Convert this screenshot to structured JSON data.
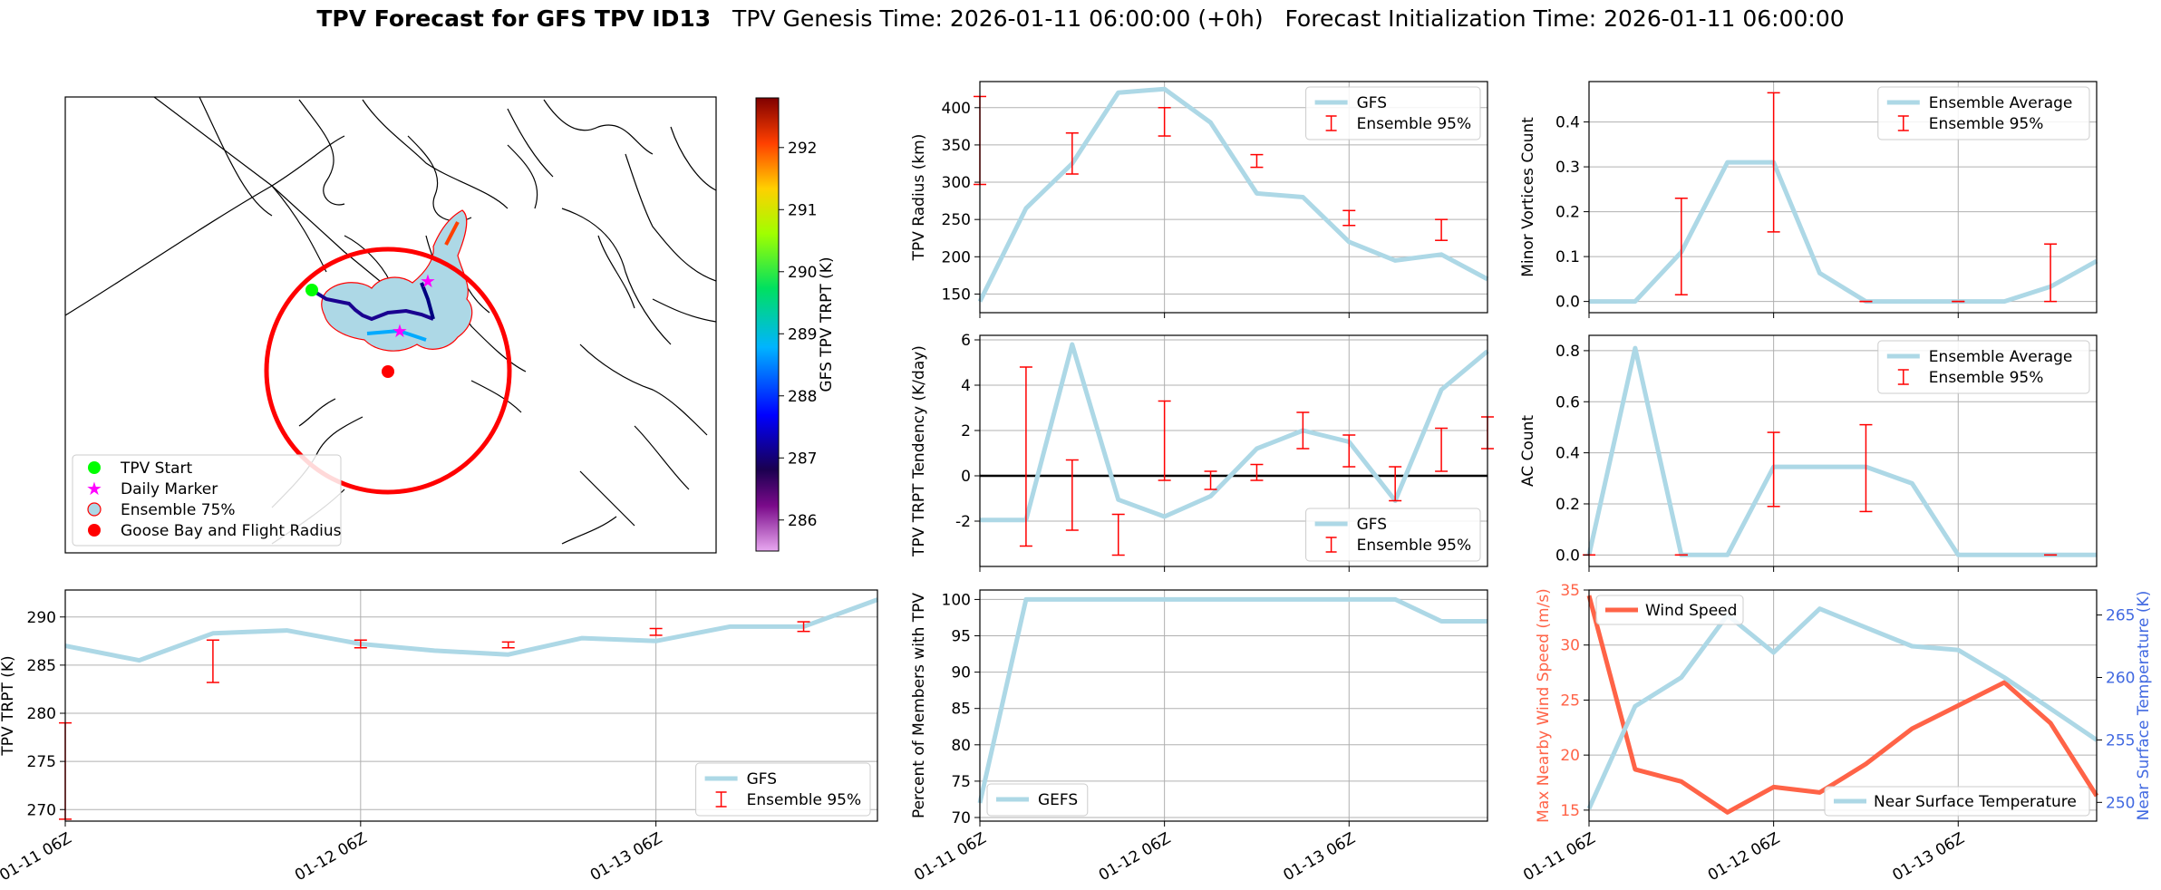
{
  "title": {
    "bold": "TPV Forecast for GFS TPV ID13",
    "genesis": "TPV Genesis Time: 2026-01-11 06:00:00 (+0h)",
    "init": "Forecast Initialization Time: 2026-01-11 06:00:00"
  },
  "colors": {
    "series": "#add8e6",
    "error": "#ff0000",
    "wind": "#ff6347",
    "temp_axis": "#4169e1",
    "grid": "#b0b0b0",
    "coast": "#000000",
    "fill": "#add8e6"
  },
  "map": {
    "legend": [
      "TPV Start",
      "Daily Marker",
      "Ensemble 75%",
      "Goose Bay and Flight Radius"
    ],
    "colorbar": {
      "label": "GFS TPV TRPT (K)",
      "ticks": [
        286,
        287,
        288,
        289,
        290,
        291,
        292
      ],
      "range": [
        285.5,
        292.8
      ]
    }
  },
  "chart_data": [
    {
      "id": "radius",
      "type": "line",
      "title": "",
      "xlabel": "",
      "ylabel": "TPV Radius (km)",
      "x": [
        0,
        0.25,
        0.5,
        0.75,
        1.0,
        1.25,
        1.5,
        1.75,
        2.0,
        2.25,
        2.5,
        2.75
      ],
      "xlim": [
        0,
        2.75
      ],
      "ylim": [
        125,
        435
      ],
      "yticks": [
        150,
        200,
        250,
        300,
        350,
        400
      ],
      "xticks": [
        0,
        1,
        2
      ],
      "xticklabels": [
        "01-11 06Z",
        "01-12 06Z",
        "01-13 06Z"
      ],
      "show_xticklabels": false,
      "series": [
        {
          "name": "GFS",
          "values": [
            140,
            265,
            325,
            420,
            425,
            380,
            285,
            280,
            220,
            195,
            203,
            170
          ]
        }
      ],
      "errorbars": {
        "name": "Ensemble 95%",
        "ranges": [
          [
            297,
            415
          ],
          null,
          [
            311,
            366
          ],
          null,
          [
            362,
            400
          ],
          null,
          [
            320,
            337
          ],
          null,
          [
            242,
            262
          ],
          null,
          [
            222,
            250
          ],
          null
        ]
      },
      "legend": [
        "GFS",
        "Ensemble 95%"
      ],
      "legend_loc": "upper-right"
    },
    {
      "id": "minor",
      "type": "line",
      "title": "",
      "xlabel": "",
      "ylabel": "Minor Vortices Count",
      "x": [
        0,
        0.25,
        0.5,
        0.75,
        1.0,
        1.25,
        1.5,
        1.75,
        2.0,
        2.25,
        2.5,
        2.75
      ],
      "xlim": [
        0,
        2.75
      ],
      "ylim": [
        -0.025,
        0.49
      ],
      "yticks": [
        0.0,
        0.1,
        0.2,
        0.3,
        0.4
      ],
      "xticks": [
        0,
        1,
        2
      ],
      "xticklabels": [
        "01-11 06Z",
        "01-12 06Z",
        "01-13 06Z"
      ],
      "show_xticklabels": false,
      "series": [
        {
          "name": "Ensemble Average",
          "values": [
            0,
            0,
            0.11,
            0.31,
            0.31,
            0.063,
            0,
            0,
            0,
            0,
            0.033,
            0.09
          ]
        }
      ],
      "errorbars": {
        "name": "Ensemble 95%",
        "ranges": [
          null,
          null,
          [
            0.015,
            0.23
          ],
          null,
          [
            0.155,
            0.465
          ],
          null,
          [
            0,
            0
          ],
          null,
          [
            0,
            0
          ],
          null,
          [
            0,
            0.128
          ],
          null
        ]
      },
      "legend": [
        "Ensemble Average",
        "Ensemble 95%"
      ],
      "legend_loc": "upper-right"
    },
    {
      "id": "tendency",
      "type": "line",
      "title": "",
      "xlabel": "",
      "ylabel": "TPV TRPT Tendency (K/day)",
      "x": [
        0,
        0.25,
        0.5,
        0.75,
        1.0,
        1.25,
        1.5,
        1.75,
        2.0,
        2.25,
        2.5,
        2.75
      ],
      "xlim": [
        0,
        2.75
      ],
      "ylim": [
        -4.0,
        6.2
      ],
      "yticks": [
        -2,
        0,
        2,
        4,
        6
      ],
      "xticks": [
        0,
        1,
        2
      ],
      "xticklabels": [
        "01-11 06Z",
        "01-12 06Z",
        "01-13 06Z"
      ],
      "show_xticklabels": false,
      "zero_line": true,
      "series": [
        {
          "name": "GFS",
          "values": [
            -1.95,
            -1.95,
            5.8,
            -1.05,
            -1.8,
            -0.9,
            1.2,
            2.0,
            1.5,
            -1.1,
            3.8,
            5.5
          ]
        }
      ],
      "errorbars": {
        "name": "Ensemble 95%",
        "ranges": [
          null,
          null,
          null,
          null,
          null,
          null,
          null,
          null,
          null,
          null,
          null,
          null
        ],
        "xs": [
          0.25,
          0.5,
          0.75,
          1.0,
          1.25,
          1.5,
          1.75,
          2.0,
          2.25,
          2.5,
          2.75
        ],
        "rs": [
          [
            -3.1,
            4.8
          ],
          [
            -2.4,
            0.7
          ],
          [
            -3.5,
            -1.7
          ],
          [
            -0.2,
            3.3
          ],
          [
            -0.6,
            0.2
          ],
          [
            -0.2,
            0.5
          ],
          [
            1.2,
            2.8
          ],
          [
            0.4,
            1.8
          ],
          [
            -1.1,
            0.4
          ],
          [
            0.2,
            2.1
          ],
          [
            1.2,
            2.6
          ]
        ]
      },
      "legend": [
        "GFS",
        "Ensemble 95%"
      ],
      "legend_loc": "lower-right"
    },
    {
      "id": "ac",
      "type": "line",
      "title": "",
      "xlabel": "",
      "ylabel": "AC Count",
      "x": [
        0,
        0.25,
        0.5,
        0.75,
        1.0,
        1.25,
        1.5,
        1.75,
        2.0,
        2.25,
        2.5,
        2.75
      ],
      "xlim": [
        0,
        2.75
      ],
      "ylim": [
        -0.045,
        0.86
      ],
      "yticks": [
        0.0,
        0.2,
        0.4,
        0.6,
        0.8
      ],
      "xticks": [
        0,
        1,
        2
      ],
      "xticklabels": [
        "01-11 06Z",
        "01-12 06Z",
        "01-13 06Z"
      ],
      "show_xticklabels": false,
      "series": [
        {
          "name": "Ensemble Average",
          "values": [
            0,
            0.81,
            0,
            0,
            0.345,
            0.345,
            0.345,
            0.28,
            0,
            0,
            0,
            0
          ]
        }
      ],
      "errorbars": {
        "name": "Ensemble 95%",
        "ranges": [
          [
            0,
            0
          ],
          null,
          [
            0,
            0
          ],
          null,
          [
            0.19,
            0.48
          ],
          null,
          [
            0.17,
            0.51
          ],
          null,
          null,
          null,
          [
            0,
            0
          ],
          null
        ]
      },
      "legend": [
        "Ensemble Average",
        "Ensemble 95%"
      ],
      "legend_loc": "upper-right"
    },
    {
      "id": "trpt",
      "type": "line",
      "title": "",
      "xlabel": "",
      "ylabel": "TPV TRPT (K)",
      "x": [
        0,
        0.25,
        0.5,
        0.75,
        1.0,
        1.25,
        1.5,
        1.75,
        2.0,
        2.25,
        2.5,
        2.75
      ],
      "xlim": [
        0,
        2.75
      ],
      "ylim": [
        268.8,
        292.8
      ],
      "yticks": [
        270,
        275,
        280,
        285,
        290
      ],
      "xticks": [
        0,
        1,
        2
      ],
      "xticklabels": [
        "01-11 06Z",
        "01-12 06Z",
        "01-13 06Z"
      ],
      "show_xticklabels": true,
      "series": [
        {
          "name": "GFS",
          "values": [
            287.0,
            285.5,
            288.3,
            288.6,
            287.2,
            286.5,
            286.1,
            287.8,
            287.5,
            289.0,
            289.0,
            291.8
          ]
        }
      ],
      "errorbars": {
        "name": "Ensemble 95%",
        "ranges": [
          [
            269.0,
            279.0
          ],
          null,
          [
            283.2,
            287.6
          ],
          null,
          [
            286.8,
            287.6
          ],
          null,
          [
            286.8,
            287.4
          ],
          null,
          [
            288.1,
            288.8
          ],
          null,
          [
            288.5,
            289.5
          ],
          null
        ]
      },
      "legend": [
        "GFS",
        "Ensemble 95%"
      ],
      "legend_loc": "lower-right"
    },
    {
      "id": "members",
      "type": "line",
      "title": "",
      "xlabel": "",
      "ylabel": "Percent of Members with TPV",
      "x": [
        0,
        0.25,
        0.5,
        0.75,
        1.0,
        1.25,
        1.5,
        1.75,
        2.0,
        2.25,
        2.5,
        2.75
      ],
      "xlim": [
        0,
        2.75
      ],
      "ylim": [
        69.5,
        101.3
      ],
      "yticks": [
        70,
        75,
        80,
        85,
        90,
        95,
        100
      ],
      "xticks": [
        0,
        1,
        2
      ],
      "xticklabels": [
        "01-11 06Z",
        "01-12 06Z",
        "01-13 06Z"
      ],
      "show_xticklabels": true,
      "series": [
        {
          "name": "GEFS",
          "values": [
            72,
            100,
            100,
            100,
            100,
            100,
            100,
            100,
            100,
            100,
            97,
            97
          ]
        }
      ],
      "legend": [
        "GEFS"
      ],
      "legend_loc": "lower-left"
    },
    {
      "id": "wind_temp",
      "type": "line",
      "title": "",
      "xlabel": "",
      "ylabel": "Max Nearby Wind Speed (m/s)",
      "ylabel_right": "Near Surface Temperature (K)",
      "x": [
        0,
        0.25,
        0.5,
        0.75,
        1.0,
        1.25,
        1.5,
        1.75,
        2.0,
        2.25,
        2.5,
        2.75
      ],
      "xlim": [
        0,
        2.75
      ],
      "ylim": [
        14.0,
        35.0
      ],
      "ylim_right": [
        248.5,
        267.0
      ],
      "yticks": [
        15,
        20,
        25,
        30,
        35
      ],
      "yticks_right": [
        250,
        255,
        260,
        265
      ],
      "xticks": [
        0,
        1,
        2
      ],
      "xticklabels": [
        "01-11 06Z",
        "01-12 06Z",
        "01-13 06Z"
      ],
      "show_xticklabels": true,
      "series": [
        {
          "name": "Wind Speed",
          "axis": "left",
          "values": [
            34.5,
            18.7,
            17.6,
            14.8,
            17.1,
            16.6,
            19.2,
            22.4,
            24.5,
            26.6,
            22.9,
            16.3
          ]
        },
        {
          "name": "Near Surface Temperature",
          "axis": "right",
          "values": [
            249.5,
            257.7,
            260.0,
            265.0,
            262.0,
            265.5,
            264.0,
            262.5,
            262.2,
            260.0,
            257.5,
            255.0
          ]
        }
      ],
      "legend": [
        "Wind Speed",
        "Near Surface Temperature"
      ]
    }
  ]
}
